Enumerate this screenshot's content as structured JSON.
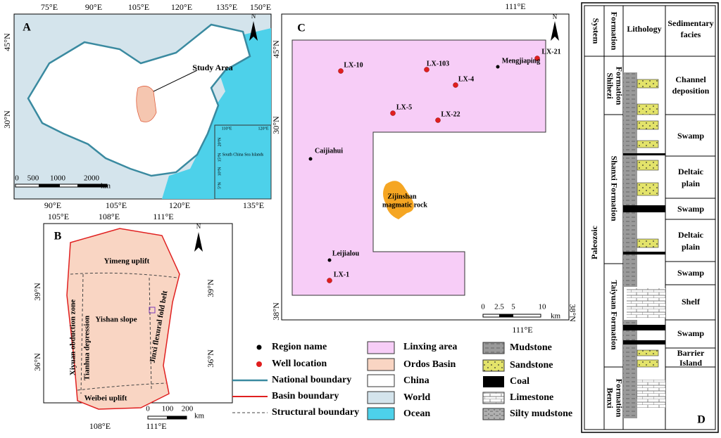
{
  "panel_a": {
    "label": "A",
    "north": "N",
    "top_lon": [
      "75°E",
      "90°E",
      "105°E",
      "120°E",
      "135°E",
      "150°E"
    ],
    "bottom_lon": [
      "90°E",
      "105°E",
      "120°E",
      "135°E"
    ],
    "lat": [
      "45°N",
      "30°N"
    ],
    "study_area": "Study Area",
    "scale": [
      0,
      500,
      1000,
      2000
    ],
    "scale_unit": "km",
    "inset": {
      "title": "South China Sea Islands",
      "lon": [
        "110°E",
        "120°E"
      ],
      "lat": [
        "20°N",
        "15°N",
        "10°N",
        "5°N"
      ]
    }
  },
  "panel_b": {
    "label": "B",
    "north": "N",
    "top_lon": [
      "105°E",
      "108°E",
      "111°E"
    ],
    "bottom_lon": [
      "108°E",
      "111°E"
    ],
    "left_lat": [
      "39°N",
      "36°N"
    ],
    "right_lat": [
      "39°N",
      "36°N"
    ],
    "units": [
      "Yimeng uplift",
      "Yishan slope",
      "Xiyuan obduction zone",
      "Tianhua depression",
      "Jinxi flexural fold belt",
      "Weibei uplift"
    ],
    "scale": [
      0,
      100,
      200
    ],
    "scale_unit": "km"
  },
  "panel_c": {
    "label": "C",
    "north": "N",
    "top_lon": "111°E",
    "bottom_lon": "111°E",
    "left_lat": [
      "45°N",
      "30°N",
      "38°N"
    ],
    "right_lat": "38°N",
    "wells": [
      "LX-10",
      "LX-103",
      "LX-4",
      "LX-21",
      "LX-5",
      "LX-22",
      "LX-1"
    ],
    "regions": [
      "Mengjiaping",
      "Caijiahui",
      "Leijialou"
    ],
    "rock": [
      "Zijinshan",
      "magmatic rock"
    ],
    "scale": [
      0,
      2.5,
      5,
      10
    ],
    "scale_unit": "km"
  },
  "legend": {
    "symbols": [
      "Region name",
      "Well location",
      "National boundary",
      "Basin boundary",
      "Structural boundary"
    ],
    "areas": [
      "Linxing area",
      "Ordos Basin",
      "China",
      "World",
      "Ocean"
    ],
    "lithology": [
      "Mudstone",
      "Sandstone",
      "Coal",
      "Limestone",
      "Silty mudstone"
    ]
  },
  "panel_d": {
    "label": "D",
    "headers": {
      "system": "System",
      "formation": "Formation",
      "lithology": "Lithology",
      "facies": [
        "Sedimentary",
        "facies"
      ]
    },
    "system": "Paleozoic",
    "formations": [
      [
        "Shihezi",
        "Formation"
      ],
      [
        "Shanxi Formation"
      ],
      [
        "Taiyuan Formation"
      ],
      [
        "Benxi",
        "Formation"
      ]
    ],
    "facies": [
      [
        "Channel",
        "deposition"
      ],
      [
        "Swamp"
      ],
      [
        "Deltaic",
        "plain"
      ],
      [
        "Swamp"
      ],
      [
        "Deltaic",
        "plain"
      ],
      [
        "Swamp"
      ],
      [
        "Shelf"
      ],
      [
        "Swamp"
      ],
      [
        "Barrier",
        "Island"
      ]
    ]
  }
}
